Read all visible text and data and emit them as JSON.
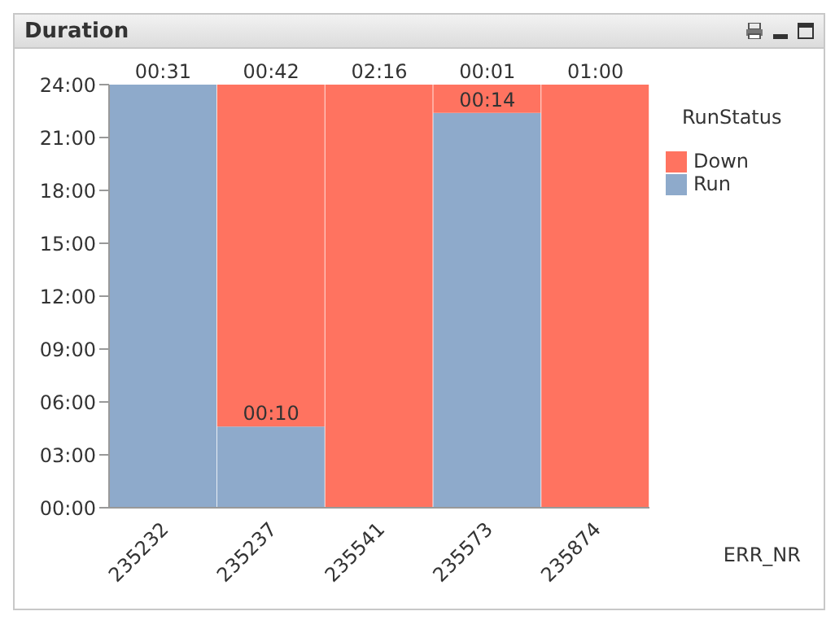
{
  "chart_data": {
    "type": "bar",
    "title": "Duration",
    "xlabel": "ERR_NR",
    "legend_title": "RunStatus",
    "stacked": true,
    "categories": [
      "235232",
      "235237",
      "235541",
      "235573",
      "235874"
    ],
    "series": [
      {
        "name": "Run",
        "color": "#8eaacb",
        "values": [
          24,
          4.6,
          null,
          22.4,
          null
        ]
      },
      {
        "name": "Down",
        "color": "#ff7360",
        "values": [
          null,
          19.4,
          24,
          1.6,
          24
        ]
      }
    ],
    "annotations": [
      {
        "text": "00:31",
        "x": "235232",
        "y": 24
      },
      {
        "text": "00:42",
        "x": "235237",
        "y": 24
      },
      {
        "text": "00:10",
        "x": "235237",
        "y": 4.6
      },
      {
        "text": "02:16",
        "x": "235541",
        "y": 24
      },
      {
        "text": "00:01",
        "x": "235573",
        "y": 24
      },
      {
        "text": "00:14",
        "x": "235573",
        "y": 22.4
      },
      {
        "text": "01:00",
        "x": "235874",
        "y": 24
      }
    ],
    "ylim": [
      0,
      24
    ],
    "yticks": [
      {
        "value": 0,
        "label": "00:00"
      },
      {
        "value": 3,
        "label": "03:00"
      },
      {
        "value": 6,
        "label": "06:00"
      },
      {
        "value": 9,
        "label": "09:00"
      },
      {
        "value": 12,
        "label": "12:00"
      },
      {
        "value": 15,
        "label": "15:00"
      },
      {
        "value": 18,
        "label": "18:00"
      },
      {
        "value": 21,
        "label": "21:00"
      },
      {
        "value": 24,
        "label": "24:00"
      }
    ],
    "grid": false,
    "legend": "top right"
  }
}
